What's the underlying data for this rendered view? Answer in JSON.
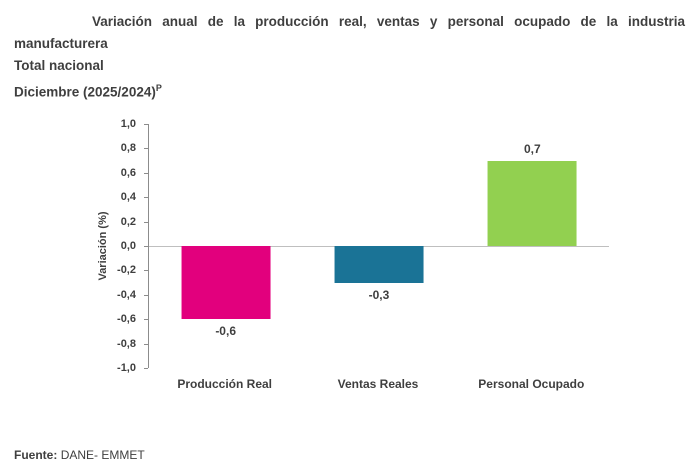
{
  "title": {
    "line1": "Variación anual de la producción real, ventas y personal ocupado de la industria",
    "line2": "manufacturera",
    "coverage": "Total nacional",
    "period": "Diciembre (2025/2024)",
    "period_sup": "P"
  },
  "footer": {
    "label": "Fuente:",
    "text": "DANE- EMMET"
  },
  "chart_data": {
    "type": "bar",
    "title": "Variación anual de la producción real, ventas y personal ocupado de la industria manufacturera - Total nacional - Diciembre (2025/2024)P",
    "categories": [
      "Producción Real",
      "Ventas Reales",
      "Personal Ocupado"
    ],
    "values": [
      -0.6,
      -0.3,
      0.7
    ],
    "value_labels": [
      "-0,6",
      "-0,3",
      "0,7"
    ],
    "bar_colors": [
      "#e2007d",
      "#1a7396",
      "#92d050"
    ],
    "xlabel": "",
    "ylabel": "Variación (%)",
    "ylim": [
      -1.0,
      1.0
    ],
    "ytick_step": 0.2,
    "ytick_labels": [
      "1,0",
      "0,8",
      "0,6",
      "0,4",
      "0,2",
      "0,0",
      "-0,2",
      "-0,4",
      "-0,6",
      "-0,8",
      "-1,0"
    ],
    "grid": false,
    "legend": "none",
    "zero_line_color": "#bfbfbf",
    "axis_color": "#8c8c8c",
    "text_color": "#3f3f3f"
  }
}
